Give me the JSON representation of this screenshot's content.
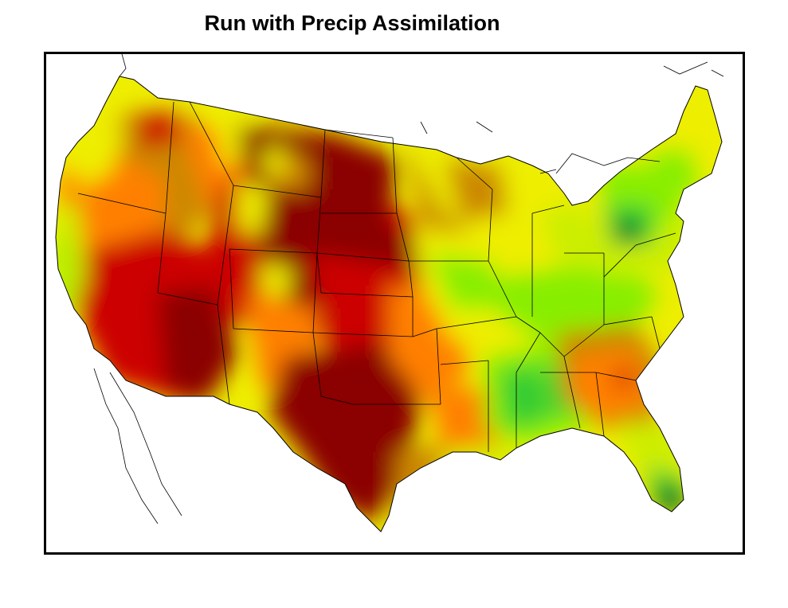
{
  "title": "Run with Precip Assimilation",
  "palette": {
    "dark_red": "#8b0000",
    "red": "#cc0000",
    "orange_red": "#e64a00",
    "orange": "#ff8000",
    "dark_orange": "#cc8800",
    "yellow": "#eeee00",
    "yellow_green": "#ccee00",
    "light_green": "#88ee00",
    "green": "#33cc33",
    "dark_green": "#006633"
  }
}
